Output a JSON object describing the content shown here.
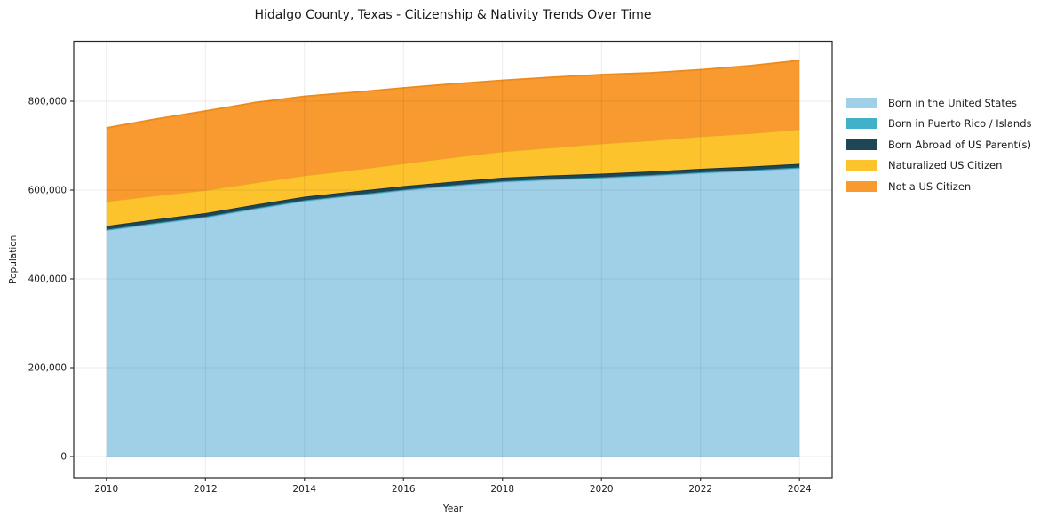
{
  "chart_data": {
    "type": "area",
    "stacked": true,
    "title": "Hidalgo County, Texas - Citizenship & Nativity Trends Over Time",
    "xlabel": "Year",
    "ylabel": "Population",
    "x": [
      2010,
      2011,
      2012,
      2013,
      2014,
      2015,
      2016,
      2017,
      2018,
      2019,
      2020,
      2021,
      2022,
      2023,
      2024
    ],
    "series": [
      {
        "name": "Born in the United States",
        "color": "#a0d0e8",
        "edge_color": "#8abfdc",
        "values": [
          509000,
          524000,
          538000,
          557000,
          575000,
          587000,
          599000,
          609000,
          618000,
          623000,
          627000,
          632000,
          638000,
          643000,
          649000
        ]
      },
      {
        "name": "Born in Puerto Rico / Islands",
        "color": "#41b0c9",
        "edge_color": "#2f98b0",
        "values": [
          2000,
          2000,
          2000,
          2000,
          2000,
          2000,
          2000,
          2000,
          2000,
          2000,
          2000,
          2000,
          2000,
          2000,
          2000
        ]
      },
      {
        "name": "Born Abroad of US Parent(s)",
        "color": "#1e4756",
        "edge_color": "#16323d",
        "values": [
          8000,
          8000,
          8000,
          8000,
          8000,
          8000,
          8000,
          8000,
          8000,
          8000,
          8000,
          8000,
          8000,
          8000,
          8000
        ]
      },
      {
        "name": "Naturalized US Citizen",
        "color": "#fcc32d",
        "edge_color": "#eda424",
        "values": [
          56000,
          54000,
          52000,
          50000,
          48000,
          49000,
          51000,
          55000,
          59000,
          63000,
          68000,
          70000,
          73000,
          75000,
          78000
        ]
      },
      {
        "name": "Not a US Citizen",
        "color": "#f89a30",
        "edge_color": "#ed8a1c",
        "values": [
          165000,
          172000,
          178000,
          180000,
          178000,
          174000,
          170000,
          165000,
          160000,
          158000,
          155000,
          152000,
          150000,
          152000,
          155000
        ]
      }
    ],
    "xlim": [
      2009.34,
      2024.66
    ],
    "ylim": [
      -48000,
      935000
    ],
    "xticks": [
      2010,
      2012,
      2014,
      2016,
      2018,
      2020,
      2022,
      2024
    ],
    "xtick_labels": [
      "2010",
      "2012",
      "2014",
      "2016",
      "2018",
      "2020",
      "2022",
      "2024"
    ],
    "yticks": [
      0,
      200000,
      400000,
      600000,
      800000
    ],
    "ytick_labels": [
      "0",
      "200,000",
      "400,000",
      "600,000",
      "800,000"
    ],
    "grid": true,
    "legend_position": "right-outside"
  },
  "colors": {
    "text": "#1a1a1a",
    "spine": "#262626",
    "grid": "rgba(0,0,0,0.08)",
    "background": "#ffffff"
  }
}
